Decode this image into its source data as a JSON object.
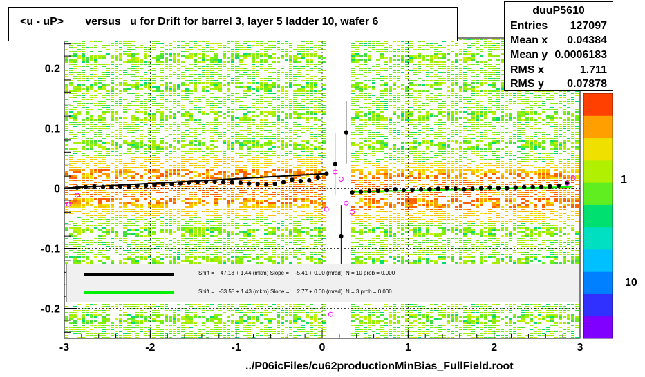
{
  "title": "<u - uP>       versus   u for Drift for barrel 3, layer 5 ladder 10, wafer 6",
  "stats": {
    "name": "duuP5610",
    "rows": [
      {
        "key": "Entries",
        "value": "127097"
      },
      {
        "key": "Mean x",
        "value": "0.04384"
      },
      {
        "key": "Mean y",
        "value": "0.0006183"
      },
      {
        "key": "RMS x",
        "value": "1.711"
      },
      {
        "key": "RMS y",
        "value": "0.07878"
      }
    ]
  },
  "legend": [
    {
      "text": "Shift =    47.13 + 1.44 (mkm) Slope =    -5.41 + 0.00 (mrad)  N = 10 prob = 0.000",
      "color": "#000000"
    },
    {
      "text": "Shift =   -33.55 + 1.43 (mkm) Slope =     2.77 + 0.00 (mrad)  N = 3 prob = 0.000",
      "color": "#00ee00"
    }
  ],
  "footer": "../P06icFiles/cu62productionMinBias_FullField.root",
  "colors": {
    "profile": "#000000",
    "fit_black": "#000000",
    "fit_green": "#00ee00",
    "open_markers": "#ff00ff",
    "palette": [
      "#7f00ff",
      "#3030ff",
      "#0080ff",
      "#00c0ff",
      "#00e0c0",
      "#00e070",
      "#60ee20",
      "#b0f000",
      "#f0e000",
      "#ffa000",
      "#ff4000"
    ]
  },
  "chart_data": {
    "type": "heatmap",
    "title": "<u - uP>       versus   u for Drift for barrel 3, layer 5 ladder 10, wafer 6",
    "xlabel": "",
    "ylabel": "",
    "xlim": [
      -3,
      3
    ],
    "ylim": [
      -0.25,
      0.25
    ],
    "x_ticks": [
      "-3",
      "-2",
      "-1",
      "0",
      "1",
      "2",
      "3"
    ],
    "y_ticks": [
      "-0.2",
      "-0.1",
      "0",
      "0.1",
      "0.2"
    ],
    "z_axis_labels": [
      "1",
      "10"
    ],
    "grid": true,
    "profile_points": {
      "x": [
        -2.85,
        -2.75,
        -2.65,
        -2.55,
        -2.45,
        -2.35,
        -2.25,
        -2.15,
        -2.05,
        -1.95,
        -1.85,
        -1.75,
        -1.65,
        -1.55,
        -1.45,
        -1.35,
        -1.25,
        -1.15,
        -1.05,
        -0.95,
        -0.85,
        -0.75,
        -0.65,
        -0.55,
        -0.45,
        -0.35,
        -0.25,
        -0.15,
        -0.05,
        0.05,
        0.15,
        0.22,
        0.28,
        0.35,
        0.45,
        0.55,
        0.65,
        0.75,
        0.85,
        0.95,
        1.05,
        1.15,
        1.25,
        1.35,
        1.45,
        1.55,
        1.65,
        1.75,
        1.85,
        1.95,
        2.05,
        2.15,
        2.25,
        2.35,
        2.45,
        2.55,
        2.65,
        2.75,
        2.85
      ],
      "y": [
        0.001,
        0.002,
        0.003,
        0.002,
        0.002,
        0.003,
        0.003,
        0.004,
        0.004,
        0.005,
        0.006,
        0.007,
        0.008,
        0.009,
        0.01,
        0.011,
        0.011,
        0.01,
        0.01,
        0.009,
        0.008,
        0.007,
        0.006,
        0.007,
        0.01,
        0.014,
        0.012,
        0.013,
        0.018,
        0.024,
        0.04,
        -0.08,
        0.093,
        -0.007,
        -0.006,
        -0.005,
        -0.004,
        -0.003,
        -0.002,
        -0.003,
        -0.003,
        -0.002,
        -0.002,
        -0.001,
        0.0,
        -0.001,
        -0.002,
        -0.001,
        0.0,
        0.001,
        0.0,
        0.0,
        0.001,
        0.002,
        0.002,
        0.002,
        0.003,
        0.004,
        0.009
      ]
    },
    "open_points": {
      "x": [
        -2.95,
        -2.85,
        0.05,
        0.15,
        0.22,
        0.28,
        0.35,
        2.85,
        2.92,
        0.1
      ],
      "y": [
        -0.027,
        -0.012,
        -0.035,
        0.027,
        0.015,
        -0.025,
        -0.04,
        0.008,
        0.017,
        -0.21
      ]
    },
    "fits": [
      {
        "x": [
          -3,
          0.05
        ],
        "y": [
          0.0,
          0.024
        ],
        "color": "#000000"
      },
      {
        "x": [
          0.35,
          2.9
        ],
        "y": [
          -0.006,
          0.002
        ],
        "color": "#00ee00"
      }
    ]
  }
}
